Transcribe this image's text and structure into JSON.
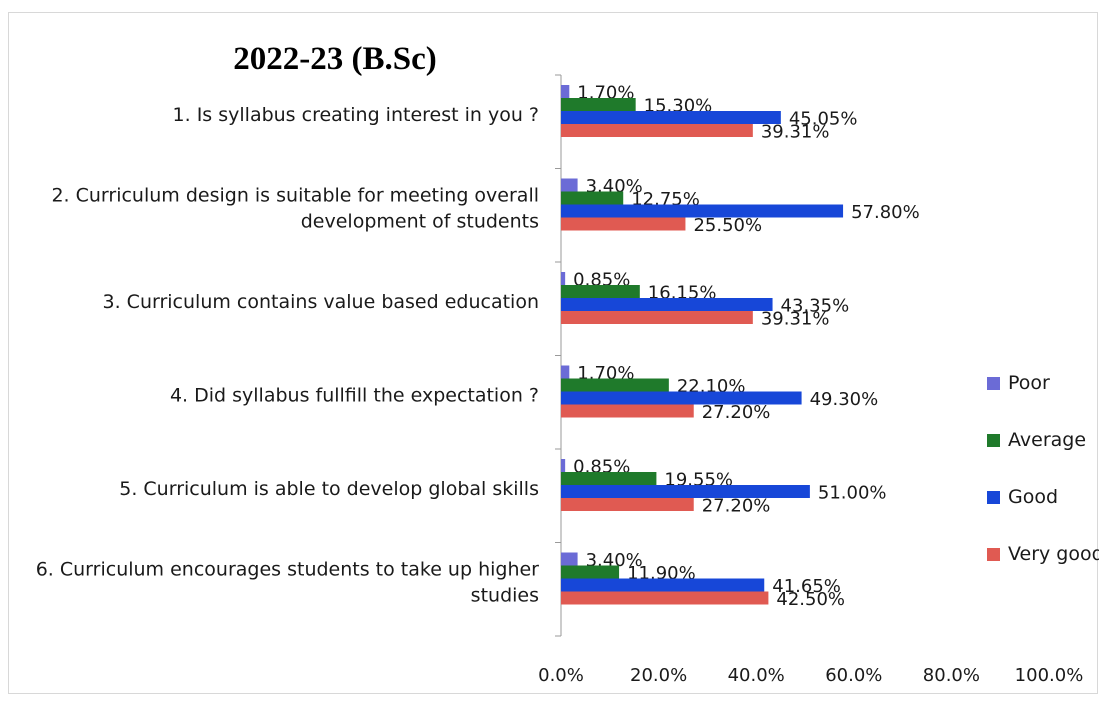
{
  "chart_data": {
    "type": "bar",
    "orientation": "horizontal",
    "title": "2022-23 (B.Sc)",
    "categories": [
      [
        "1. Is syllabus creating interest in you ?"
      ],
      [
        "2. Curriculum design is suitable for meeting overall",
        "development of students"
      ],
      [
        "3. Curriculum contains value based education"
      ],
      [
        "4. Did syllabus fullfill the expectation ?"
      ],
      [
        "5. Curriculum is able to develop global skills"
      ],
      [
        "6. Curriculum encourages students to take up higher",
        "studies"
      ]
    ],
    "series": [
      {
        "name": "Poor",
        "color": "#6b6bd6",
        "values": [
          1.7,
          3.4,
          0.85,
          1.7,
          0.85,
          3.4
        ],
        "labels": [
          "1.70%",
          "3.40%",
          "0.85%",
          "1.70%",
          "0.85%",
          "3.40%"
        ]
      },
      {
        "name": "Average",
        "color": "#1f7a2b",
        "values": [
          15.3,
          12.75,
          16.15,
          22.1,
          19.55,
          11.9
        ],
        "labels": [
          "15.30%",
          "12.75%",
          "16.15%",
          "22.10%",
          "19.55%",
          "11.90%"
        ]
      },
      {
        "name": "Good",
        "color": "#1747d8",
        "values": [
          45.05,
          57.8,
          43.35,
          49.3,
          51.0,
          41.65
        ],
        "labels": [
          "45.05%",
          "57.80%",
          "43.35%",
          "49.30%",
          "51.00%",
          "41.65%"
        ]
      },
      {
        "name": "Very good",
        "color": "#e05a52",
        "values": [
          39.31,
          25.5,
          39.31,
          27.2,
          27.2,
          42.5
        ],
        "labels": [
          "39.31%",
          "25.50%",
          "39.31%",
          "27.20%",
          "27.20%",
          "42.50%"
        ]
      }
    ],
    "xlim": [
      0,
      100
    ],
    "xticks": [
      0,
      20,
      40,
      60,
      80,
      100
    ],
    "xtick_labels": [
      "0.0%",
      "20.0%",
      "40.0%",
      "60.0%",
      "80.0%",
      "100.0%"
    ],
    "grid": false,
    "legend": "right"
  }
}
